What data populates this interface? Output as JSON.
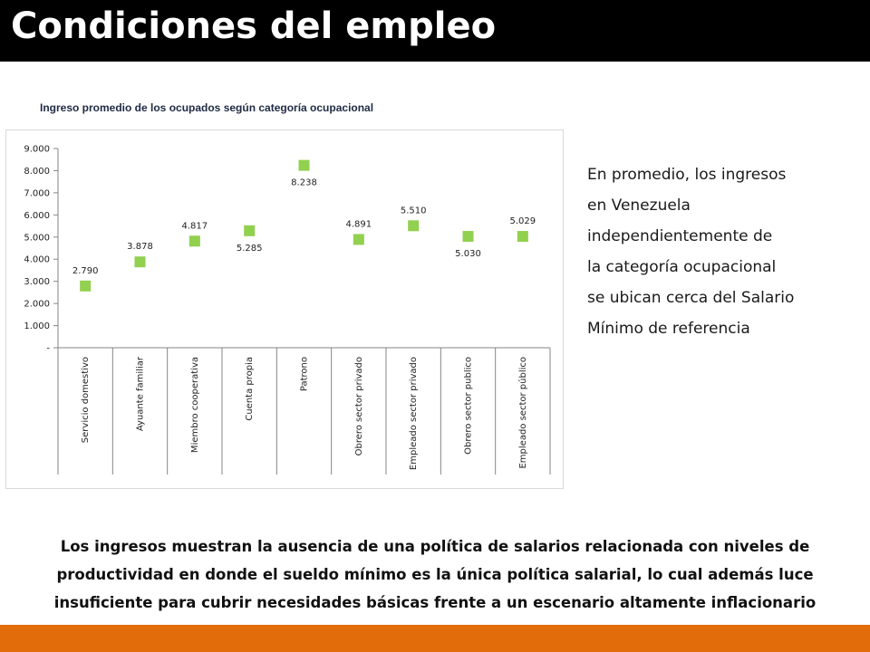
{
  "header": {
    "title": "Condiciones del empleo"
  },
  "chart_caption": "Ingreso promedio de los ocupados según categoría ocupacional",
  "chart_data": {
    "type": "scatter",
    "title": "Ingreso promedio de los ocupados según categoría ocupacional",
    "xlabel": "",
    "ylabel": "",
    "ylim": [
      0,
      9000
    ],
    "y_tick_labels": [
      "-",
      "1.000",
      "2.000",
      "3.000",
      "4.000",
      "5.000",
      "6.000",
      "7.000",
      "8.000",
      "9.000"
    ],
    "y_ticks": [
      0,
      1000,
      2000,
      3000,
      4000,
      5000,
      6000,
      7000,
      8000,
      9000
    ],
    "grid": false,
    "marker_color": "#92d050",
    "categories": [
      "Servicio domestivo",
      "Ayuante familiar",
      "Miembro cooperativa",
      "Cuenta propia",
      "Patrono",
      "Obrero sector privado",
      "Empleado sector privado",
      "Obrero sector publico",
      "Empleado sector público"
    ],
    "values": [
      2790,
      3878,
      4817,
      5285,
      8238,
      4891,
      5510,
      5030,
      5029
    ],
    "value_labels": [
      "2.790",
      "3.878",
      "4.817",
      "5.285",
      "8.238",
      "4.891",
      "5.510",
      "5.030",
      "5.029"
    ],
    "label_positions": [
      "above",
      "above",
      "above",
      "below",
      "below",
      "above",
      "above",
      "below",
      "above"
    ]
  },
  "side_note": {
    "lines": [
      "En promedio, los ingresos",
      "en Venezuela",
      "independientemente de",
      "la categoría ocupacional",
      "se ubican cerca del Salario",
      "Mínimo de referencia"
    ]
  },
  "bottom_text": {
    "lines": [
      "Los ingresos muestran la ausencia de una política de salarios relacionada con niveles de",
      "productividad en donde el sueldo mínimo es la única política salarial, lo cual además luce",
      "insuficiente para cubrir necesidades básicas frente a un escenario altamente inflacionario"
    ]
  },
  "colors": {
    "header_bg": "#000000",
    "footer_bar": "#e36c0a",
    "marker": "#92d050"
  }
}
